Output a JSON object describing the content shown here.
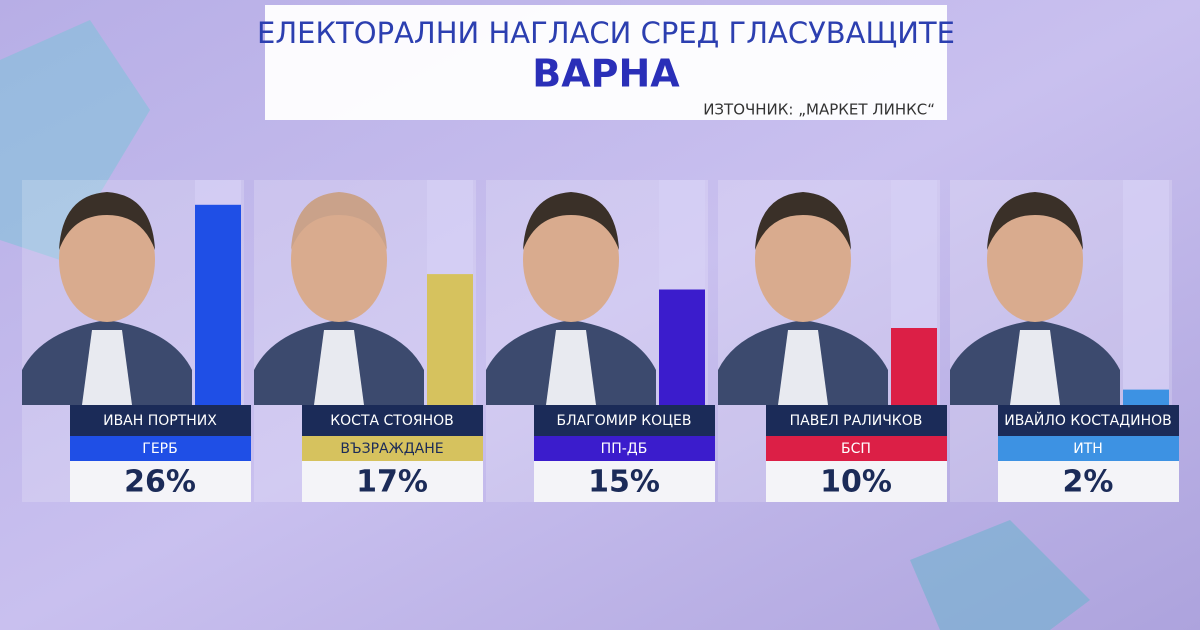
{
  "chart_data": {
    "type": "bar",
    "title": "ЕЛЕКТОРАЛНИ НАГЛАСИ СРЕД ГЛАСУВАЩИТЕ",
    "subtitle": "ВАРНА",
    "source": "ИЗТОЧНИК: „МАРКЕТ ЛИНКС“",
    "categories": [
      "ИВАН ПОРТНИХ",
      "КОСТА СТОЯНОВ",
      "БЛАГОМИР КОЦЕВ",
      "ПАВЕЛ РАЛИЧКОВ",
      "ИВАЙЛО КОСТАДИНОВ"
    ],
    "parties": [
      "ГЕРБ",
      "ВЪЗРАЖДАНЕ",
      "ПП-ДБ",
      "БСП",
      "ИТН"
    ],
    "values": [
      26,
      17,
      15,
      10,
      2
    ],
    "value_labels": [
      "26%",
      "17%",
      "15%",
      "10%",
      "2%"
    ],
    "colors": [
      "#1f4fe6",
      "#d6c25e",
      "#3b1ccc",
      "#dc1f46",
      "#3d92e3"
    ]
  }
}
